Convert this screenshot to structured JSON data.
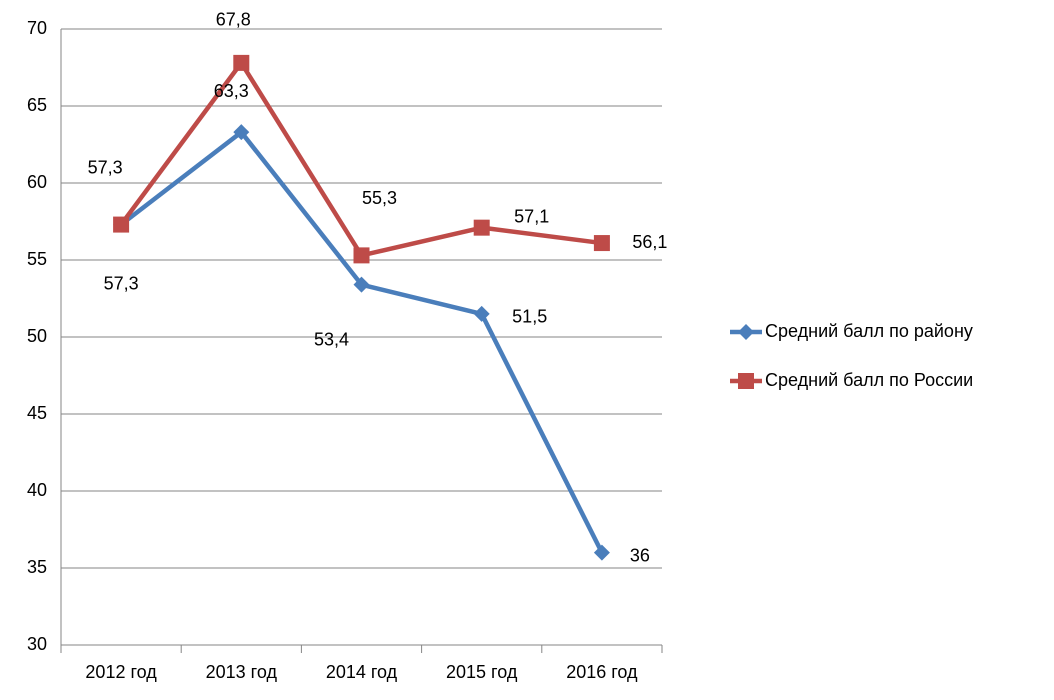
{
  "chart_data": {
    "type": "line",
    "categories": [
      "2012 год",
      "2013 год",
      "2014 год",
      "2015 год",
      "2016 год"
    ],
    "series": [
      {
        "name": "Средний балл по району",
        "color": "#4a7ebb",
        "marker": "diamond",
        "values": [
          57.3,
          63.3,
          53.4,
          51.5,
          36
        ],
        "value_labels": [
          "57,3",
          "63,3",
          "53,4",
          "51,5",
          "36"
        ]
      },
      {
        "name": "Средний балл по России",
        "color": "#be4b48",
        "marker": "square",
        "values": [
          57.3,
          67.8,
          55.3,
          57.1,
          56.1
        ],
        "value_labels": [
          "57,3",
          "67,8",
          "55,3",
          "57,1",
          "56,1"
        ]
      }
    ],
    "ylim": [
      30,
      70
    ],
    "yticks": [
      30,
      35,
      40,
      45,
      50,
      55,
      60,
      65,
      70
    ],
    "grid": true,
    "legend": "right"
  }
}
